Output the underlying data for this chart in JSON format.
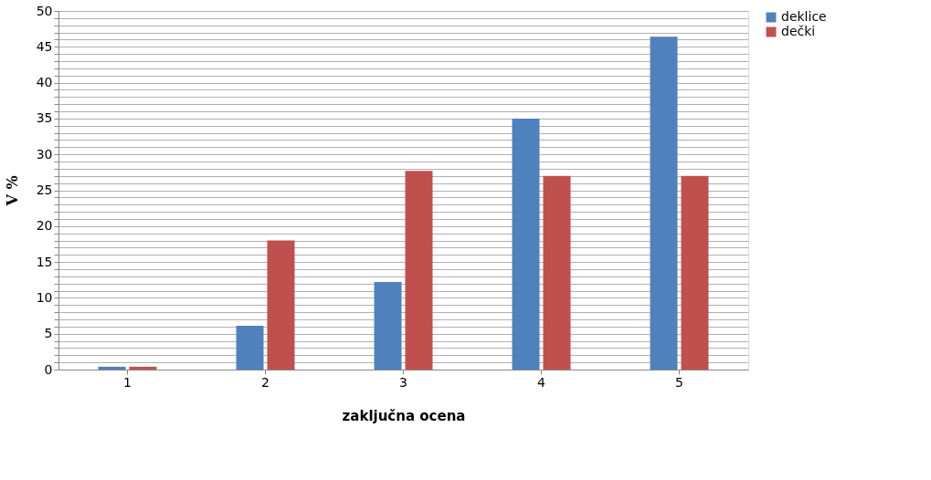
{
  "chart_data": {
    "type": "bar",
    "categories": [
      "1",
      "2",
      "3",
      "4",
      "5"
    ],
    "series": [
      {
        "name": "deklice",
        "color": "#4f81bd",
        "values": [
          0.4,
          6.1,
          12.2,
          35,
          46.4
        ]
      },
      {
        "name": "dečki",
        "color": "#c0504d",
        "values": [
          0.4,
          18,
          27.7,
          27,
          27
        ]
      }
    ],
    "xlabel": "zaključna ocena",
    "ylabel": "V %",
    "ylim": [
      0,
      50
    ],
    "yticks": [
      0,
      {
        "value": 1,
        "label": null
      },
      {
        "value": 2,
        "label": null
      },
      {
        "value": 3,
        "label": null
      },
      {
        "value": 4,
        "label": null
      },
      5,
      {
        "value": 6,
        "label": null
      },
      {
        "value": 7,
        "label": null
      },
      {
        "value": 8,
        "label": null
      },
      {
        "value": 9,
        "label": null
      },
      10,
      {
        "value": 11,
        "label": null
      },
      {
        "value": 12,
        "label": null
      },
      {
        "value": 13,
        "label": null
      },
      {
        "value": 14,
        "label": null
      },
      15,
      {
        "value": 16,
        "label": null
      },
      {
        "value": 17,
        "label": null
      },
      {
        "value": 18,
        "label": null
      },
      {
        "value": 19,
        "label": null
      },
      20,
      {
        "value": 21,
        "label": null
      },
      {
        "value": 22,
        "label": null
      },
      {
        "value": 23,
        "label": null
      },
      {
        "value": 24,
        "label": null
      },
      25,
      {
        "value": 26,
        "label": null
      },
      {
        "value": 27,
        "label": null
      },
      {
        "value": 28,
        "label": null
      },
      {
        "value": 29,
        "label": null
      },
      30,
      {
        "value": 31,
        "label": null
      },
      {
        "value": 32,
        "label": null
      },
      {
        "value": 33,
        "label": null
      },
      {
        "value": 34,
        "label": null
      },
      35,
      {
        "value": 36,
        "label": null
      },
      {
        "value": 37,
        "label": null
      },
      {
        "value": 38,
        "label": null
      },
      {
        "value": 39,
        "label": null
      },
      40,
      {
        "value": 41,
        "label": null
      },
      {
        "value": 42,
        "label": null
      },
      {
        "value": 43,
        "label": null
      },
      {
        "value": 44,
        "label": null
      },
      45,
      {
        "value": 46,
        "label": null
      },
      {
        "value": 47,
        "label": null
      },
      {
        "value": 48,
        "label": null
      },
      {
        "value": 49,
        "label": null
      },
      50
    ],
    "grid": "y",
    "legend": "right"
  }
}
